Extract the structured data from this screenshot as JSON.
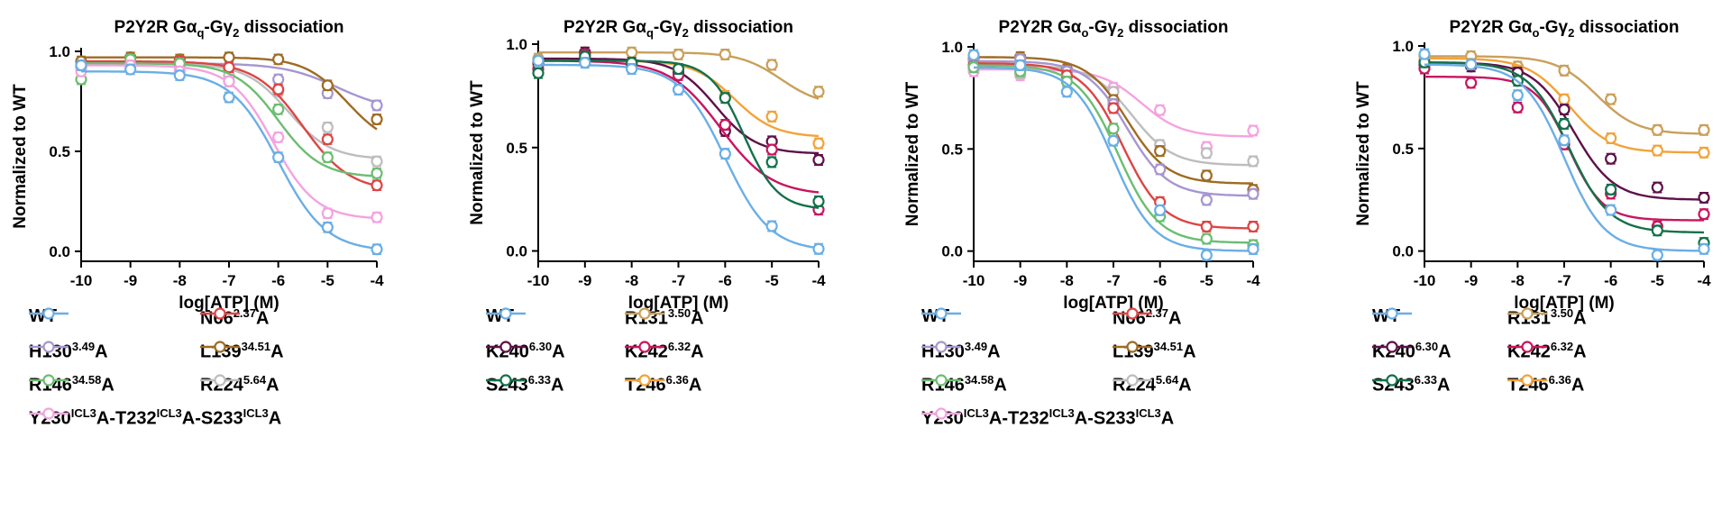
{
  "legend_styles": {
    "WT": "#6aaee6",
    "N66": "#dc4545",
    "H130": "#a696d0",
    "L139": "#9e6b24",
    "R146": "#6cbd72",
    "R224": "#bdbdbd",
    "Y230": "#f4a3df",
    "R131": "#c9a05a",
    "K240": "#5e1149",
    "K242": "#c8155f",
    "S243": "#13714a",
    "T246": "#f2a33a"
  },
  "chart_data": [
    {
      "type": "line",
      "title_main": "P2Y2R Gα",
      "title_sub1": "q",
      "title_mid": "-Gγ",
      "title_sub2": "2",
      "title_end": " dissociation",
      "xlabel": "log[ATP] (M)",
      "ylabel": "Normalized to WT",
      "xlim": [
        -10,
        -4
      ],
      "ylim": [
        -0.05,
        1.0
      ],
      "xticks": [
        "-10",
        "-9",
        "-8",
        "-7",
        "-6",
        "-5",
        "-4"
      ],
      "yticks": [
        "0.0",
        "0.5",
        "1.0"
      ],
      "yticks_values": [
        0,
        0.5,
        1.0
      ],
      "x": [
        -10,
        -9,
        -8,
        -7,
        -6,
        -5,
        -4
      ],
      "series": [
        {
          "key": "H130",
          "name": "H130",
          "sup": "3.49",
          "suffix": "A",
          "curve": {
            "top": 0.94,
            "bottom": 0.7,
            "ec50": -4.8,
            "hill": 0.8
          },
          "values": [
            0.92,
            0.94,
            0.93,
            0.91,
            0.86,
            0.79,
            0.73
          ]
        },
        {
          "key": "L139",
          "name": "L139",
          "sup": "34.51",
          "suffix": "A",
          "curve": {
            "top": 0.97,
            "bottom": 0.52,
            "ec50": -4.6,
            "hill": 1.0
          },
          "values": [
            0.95,
            0.97,
            0.96,
            0.97,
            0.96,
            0.83,
            0.66
          ]
        },
        {
          "key": "R224",
          "name": "R224",
          "sup": "5.64",
          "suffix": "A",
          "curve": {
            "top": 0.94,
            "bottom": 0.46,
            "ec50": -5.8,
            "hill": 1.0
          },
          "values": [
            0.92,
            0.93,
            0.92,
            0.88,
            0.8,
            0.62,
            0.45
          ]
        },
        {
          "key": "N66",
          "name": "N66",
          "sup": "2.37",
          "suffix": "A",
          "curve": {
            "top": 0.95,
            "bottom": 0.3,
            "ec50": -5.5,
            "hill": 0.9
          },
          "values": [
            0.93,
            0.94,
            0.95,
            0.92,
            0.81,
            0.56,
            0.33
          ]
        },
        {
          "key": "R146",
          "name": "R146",
          "sup": "34.58",
          "suffix": "A",
          "curve": {
            "top": 0.94,
            "bottom": 0.37,
            "ec50": -6.0,
            "hill": 1.0
          },
          "values": [
            0.86,
            0.96,
            0.94,
            0.85,
            0.71,
            0.47,
            0.39
          ]
        },
        {
          "key": "Y230",
          "name": "Y230",
          "sup": "ICL3",
          "suffix": "A-T232",
          "sup2": "ICL3",
          "suffix2": "A-S233",
          "sup3": "ICL3",
          "suffix3": "A",
          "curve": {
            "top": 0.93,
            "bottom": 0.16,
            "ec50": -6.1,
            "hill": 1.0
          },
          "values": [
            0.9,
            0.93,
            0.9,
            0.85,
            0.57,
            0.19,
            0.17
          ]
        },
        {
          "key": "WT",
          "name": "WT",
          "sup": "",
          "suffix": "",
          "curve": {
            "top": 0.9,
            "bottom": 0.0,
            "ec50": -6.0,
            "hill": 0.9
          },
          "values": [
            0.93,
            0.91,
            0.88,
            0.77,
            0.47,
            0.12,
            0.01
          ]
        }
      ],
      "legend_order": [
        "WT",
        "N66",
        "H130",
        "L139",
        "R146",
        "R224",
        "Y230"
      ]
    },
    {
      "type": "line",
      "title_main": "P2Y2R Gα",
      "title_sub1": "q",
      "title_mid": "-Gγ",
      "title_sub2": "2",
      "title_end": " dissociation",
      "xlabel": "log[ATP] (M)",
      "ylabel": "Normalized to WT",
      "xlim": [
        -10,
        -4
      ],
      "ylim": [
        -0.05,
        1.0
      ],
      "xticks": [
        "-10",
        "-9",
        "-8",
        "-7",
        "-6",
        "-5",
        "-4"
      ],
      "yticks": [
        "0.0",
        "0.5",
        "1.0"
      ],
      "yticks_values": [
        0,
        0.5,
        1.0
      ],
      "x": [
        -10,
        -9,
        -8,
        -7,
        -6,
        -5,
        -4
      ],
      "series": [
        {
          "key": "R131",
          "name": "R131",
          "sup": "3.50",
          "suffix": "A",
          "curve": {
            "top": 0.96,
            "bottom": 0.7,
            "ec50": -4.8,
            "hill": 1.0
          },
          "values": [
            0.93,
            0.96,
            0.96,
            0.95,
            0.95,
            0.9,
            0.77
          ]
        },
        {
          "key": "T246",
          "name": "T246",
          "sup": "6.36",
          "suffix": "A",
          "curve": {
            "top": 0.92,
            "bottom": 0.55,
            "ec50": -5.8,
            "hill": 1.0
          },
          "values": [
            0.9,
            0.94,
            0.9,
            0.87,
            0.75,
            0.65,
            0.52
          ]
        },
        {
          "key": "K240",
          "name": "K240",
          "sup": "6.30",
          "suffix": "A",
          "curve": {
            "top": 0.93,
            "bottom": 0.47,
            "ec50": -6.2,
            "hill": 1.0
          },
          "values": [
            0.91,
            0.96,
            0.91,
            0.86,
            0.58,
            0.53,
            0.44
          ]
        },
        {
          "key": "K242",
          "name": "K242",
          "sup": "6.32",
          "suffix": "A",
          "curve": {
            "top": 0.92,
            "bottom": 0.27,
            "ec50": -6.1,
            "hill": 0.8
          },
          "values": [
            0.88,
            0.95,
            0.9,
            0.85,
            0.61,
            0.49,
            0.2
          ]
        },
        {
          "key": "S243",
          "name": "S243",
          "sup": "6.33",
          "suffix": "A",
          "curve": {
            "top": 0.92,
            "bottom": 0.2,
            "ec50": -5.6,
            "hill": 1.2
          },
          "values": [
            0.86,
            0.94,
            0.91,
            0.88,
            0.74,
            0.43,
            0.24
          ]
        },
        {
          "key": "WT",
          "name": "WT",
          "sup": "",
          "suffix": "",
          "curve": {
            "top": 0.9,
            "bottom": 0.0,
            "ec50": -6.0,
            "hill": 0.9
          },
          "values": [
            0.92,
            0.91,
            0.88,
            0.78,
            0.47,
            0.12,
            0.01
          ]
        }
      ],
      "legend_order": [
        "WT",
        "R131",
        "K240",
        "K242",
        "S243",
        "T246"
      ]
    },
    {
      "type": "line",
      "title_main": "P2Y2R Gα",
      "title_sub1": "o",
      "title_mid": "-Gγ",
      "title_sub2": "2",
      "title_end": " dissociation",
      "xlabel": "log[ATP] (M)",
      "ylabel": "Normalized to WT",
      "xlim": [
        -10,
        -4
      ],
      "ylim": [
        -0.05,
        1.0
      ],
      "xticks": [
        "-10",
        "-9",
        "-8",
        "-7",
        "-6",
        "-5",
        "-4"
      ],
      "yticks": [
        "0.0",
        "0.5",
        "1.0"
      ],
      "yticks_values": [
        0,
        0.5,
        1.0
      ],
      "x": [
        -10,
        -9,
        -8,
        -7,
        -6,
        -5,
        -4
      ],
      "series": [
        {
          "key": "Y230",
          "name": "Y230",
          "sup": "ICL3",
          "suffix": "A-T232",
          "sup2": "ICL3",
          "suffix2": "A-S233",
          "sup3": "ICL3",
          "suffix3": "A",
          "curve": {
            "top": 0.89,
            "bottom": 0.56,
            "ec50": -6.4,
            "hill": 1.0
          },
          "values": [
            0.88,
            0.86,
            0.85,
            0.8,
            0.69,
            0.51,
            0.59
          ]
        },
        {
          "key": "R224",
          "name": "R224",
          "sup": "5.64",
          "suffix": "A",
          "curve": {
            "top": 0.91,
            "bottom": 0.42,
            "ec50": -6.6,
            "hill": 1.0
          },
          "values": [
            0.9,
            0.87,
            0.86,
            0.78,
            0.52,
            0.48,
            0.44
          ]
        },
        {
          "key": "L139",
          "name": "L139",
          "sup": "34.51",
          "suffix": "A",
          "curve": {
            "top": 0.95,
            "bottom": 0.33,
            "ec50": -6.7,
            "hill": 1.0
          },
          "values": [
            0.94,
            0.95,
            0.89,
            0.74,
            0.49,
            0.37,
            0.3
          ]
        },
        {
          "key": "H130",
          "name": "H130",
          "sup": "3.49",
          "suffix": "A",
          "curve": {
            "top": 0.93,
            "bottom": 0.27,
            "ec50": -6.7,
            "hill": 1.0
          },
          "values": [
            0.93,
            0.94,
            0.88,
            0.72,
            0.4,
            0.25,
            0.28
          ]
        },
        {
          "key": "N66",
          "name": "N66",
          "sup": "2.37",
          "suffix": "A",
          "curve": {
            "top": 0.92,
            "bottom": 0.11,
            "ec50": -6.8,
            "hill": 1.0
          },
          "values": [
            0.91,
            0.9,
            0.86,
            0.7,
            0.24,
            0.12,
            0.12
          ]
        },
        {
          "key": "R146",
          "name": "R146",
          "sup": "34.58",
          "suffix": "A",
          "curve": {
            "top": 0.91,
            "bottom": 0.04,
            "ec50": -6.9,
            "hill": 1.0
          },
          "values": [
            0.9,
            0.88,
            0.83,
            0.6,
            0.17,
            0.06,
            0.03
          ]
        },
        {
          "key": "WT",
          "name": "WT",
          "sup": "",
          "suffix": "",
          "curve": {
            "top": 0.9,
            "bottom": 0.0,
            "ec50": -7.0,
            "hill": 1.0
          },
          "values": [
            0.96,
            0.91,
            0.78,
            0.54,
            0.2,
            -0.02,
            0.01
          ]
        }
      ],
      "legend_order": [
        "WT",
        "N66",
        "H130",
        "L139",
        "R146",
        "R224",
        "Y230"
      ]
    },
    {
      "type": "line",
      "title_main": "P2Y2R Gα",
      "title_sub1": "o",
      "title_mid": "-Gγ",
      "title_sub2": "2",
      "title_end": " dissociation",
      "xlabel": "log[ATP] (M)",
      "ylabel": "Normalized to WT",
      "xlim": [
        -10,
        -4
      ],
      "ylim": [
        -0.05,
        1.0
      ],
      "xticks": [
        "-10",
        "-9",
        "-8",
        "-7",
        "-6",
        "-5",
        "-4"
      ],
      "yticks": [
        "0.0",
        "0.5",
        "1.0"
      ],
      "yticks_values": [
        0,
        0.5,
        1.0
      ],
      "x": [
        -10,
        -9,
        -8,
        -7,
        -6,
        -5,
        -4
      ],
      "series": [
        {
          "key": "R131",
          "name": "R131",
          "sup": "3.50",
          "suffix": "A",
          "curve": {
            "top": 0.95,
            "bottom": 0.57,
            "ec50": -6.3,
            "hill": 1.0
          },
          "values": [
            0.95,
            0.95,
            0.9,
            0.88,
            0.74,
            0.59,
            0.59
          ]
        },
        {
          "key": "T246",
          "name": "T246",
          "sup": "6.36",
          "suffix": "A",
          "curve": {
            "top": 0.94,
            "bottom": 0.48,
            "ec50": -6.9,
            "hill": 1.0
          },
          "values": [
            0.93,
            0.91,
            0.88,
            0.74,
            0.55,
            0.49,
            0.48
          ]
        },
        {
          "key": "K240",
          "name": "K240",
          "sup": "6.30",
          "suffix": "A",
          "curve": {
            "top": 0.92,
            "bottom": 0.25,
            "ec50": -6.8,
            "hill": 1.0
          },
          "values": [
            0.91,
            0.9,
            0.87,
            0.69,
            0.45,
            0.31,
            0.26
          ]
        },
        {
          "key": "K242",
          "name": "K242",
          "sup": "6.32",
          "suffix": "A",
          "curve": {
            "top": 0.85,
            "bottom": 0.15,
            "ec50": -6.9,
            "hill": 1.2
          },
          "values": [
            0.89,
            0.82,
            0.7,
            0.52,
            0.28,
            0.12,
            0.18
          ]
        },
        {
          "key": "S243",
          "name": "S243",
          "sup": "6.33",
          "suffix": "A",
          "curve": {
            "top": 0.92,
            "bottom": 0.09,
            "ec50": -6.9,
            "hill": 1.0
          },
          "values": [
            0.92,
            0.91,
            0.83,
            0.62,
            0.3,
            0.1,
            0.04
          ]
        },
        {
          "key": "WT",
          "name": "WT",
          "sup": "",
          "suffix": "",
          "curve": {
            "top": 0.91,
            "bottom": 0.0,
            "ec50": -7.0,
            "hill": 1.0
          },
          "values": [
            0.96,
            0.91,
            0.76,
            0.54,
            0.2,
            -0.02,
            0.01
          ]
        }
      ],
      "legend_order": [
        "WT",
        "R131",
        "K240",
        "K242",
        "S243",
        "T246"
      ]
    }
  ]
}
